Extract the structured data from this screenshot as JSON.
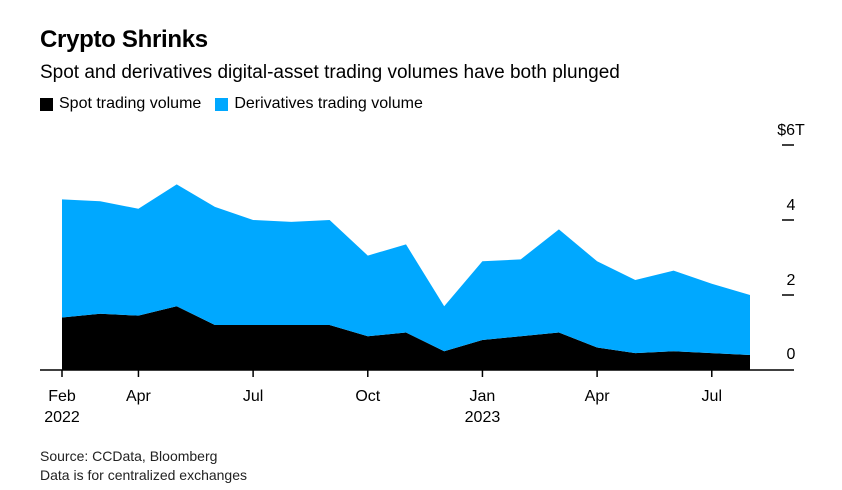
{
  "title": "Crypto Shrinks",
  "subtitle": "Spot and derivatives digital-asset trading volumes have both plunged",
  "legend": [
    {
      "label": "Spot trading volume",
      "color": "#000000"
    },
    {
      "label": "Derivatives trading volume",
      "color": "#00a8ff"
    }
  ],
  "source_lines": [
    "Source: CCData, Bloomberg",
    "Data is for centralized exchanges"
  ],
  "chart_data": {
    "type": "area",
    "stacked": true,
    "x": [
      "2022-02",
      "2022-03",
      "2022-04",
      "2022-05",
      "2022-06",
      "2022-07",
      "2022-08",
      "2022-09",
      "2022-10",
      "2022-11",
      "2022-12",
      "2023-01",
      "2023-02",
      "2023-03",
      "2023-04",
      "2023-05",
      "2023-06",
      "2023-07",
      "2023-08"
    ],
    "series": [
      {
        "name": "Spot trading volume",
        "color": "#000000",
        "values": [
          1.4,
          1.5,
          1.45,
          1.7,
          1.2,
          1.2,
          1.2,
          1.2,
          0.9,
          1.0,
          0.5,
          0.8,
          0.9,
          1.0,
          0.6,
          0.45,
          0.5,
          0.45,
          0.4
        ]
      },
      {
        "name": "Derivatives trading volume",
        "color": "#00a8ff",
        "values": [
          3.15,
          3.0,
          2.85,
          3.25,
          3.15,
          2.8,
          2.75,
          2.8,
          2.15,
          2.35,
          1.2,
          2.1,
          2.05,
          2.75,
          2.3,
          1.95,
          2.15,
          1.85,
          1.6
        ]
      }
    ],
    "y_axis": {
      "ticks": [
        "$6T",
        "4",
        "2",
        "0"
      ],
      "ylim": [
        0,
        6
      ],
      "position": "right"
    },
    "x_axis": {
      "ticks": [
        {
          "month": "2022-02",
          "label": "Feb",
          "year": "2022"
        },
        {
          "month": "2022-04",
          "label": "Apr",
          "year": ""
        },
        {
          "month": "2022-07",
          "label": "Jul",
          "year": ""
        },
        {
          "month": "2022-10",
          "label": "Oct",
          "year": ""
        },
        {
          "month": "2023-01",
          "label": "Jan",
          "year": "2023"
        },
        {
          "month": "2023-04",
          "label": "Apr",
          "year": ""
        },
        {
          "month": "2023-07",
          "label": "Jul",
          "year": ""
        }
      ]
    },
    "grid": false,
    "legend_position": "top-left"
  }
}
